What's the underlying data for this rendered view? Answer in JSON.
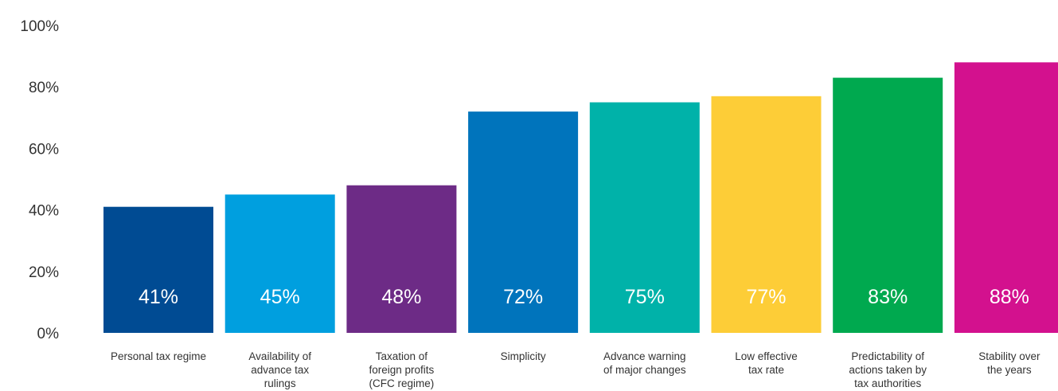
{
  "chart_data": {
    "type": "bar",
    "categories": [
      [
        "Personal tax regime"
      ],
      [
        "Availability of",
        "advance tax",
        "rulings"
      ],
      [
        "Taxation of",
        "foreign profits",
        "(CFC regime)"
      ],
      [
        "Simplicity"
      ],
      [
        "Advance warning",
        "of major changes"
      ],
      [
        "Low effective",
        "tax rate"
      ],
      [
        "Predictability of",
        "actions taken by",
        "tax authorities"
      ],
      [
        "Stability over",
        "the years"
      ]
    ],
    "values": [
      41,
      45,
      48,
      72,
      75,
      77,
      83,
      88
    ],
    "data_labels": [
      "41%",
      "45%",
      "48%",
      "72%",
      "75%",
      "77%",
      "83%",
      "88%"
    ],
    "colors": [
      "#004b93",
      "#009fdf",
      "#6d2b86",
      "#0074bc",
      "#00b2a9",
      "#fdcd37",
      "#00a94f",
      "#d3118e"
    ],
    "y_ticks": [
      0,
      20,
      40,
      60,
      80,
      100
    ],
    "y_tick_labels": [
      "0%",
      "20%",
      "40%",
      "60%",
      "80%",
      "100%"
    ],
    "ylim": [
      0,
      100
    ],
    "grid": false,
    "legend": "none",
    "title": "",
    "xlabel": "",
    "ylabel": ""
  }
}
